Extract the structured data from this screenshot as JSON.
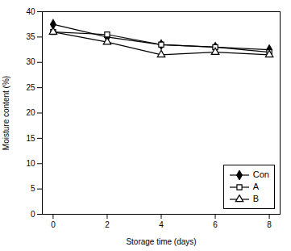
{
  "chart_data": {
    "type": "line",
    "xlabel": "Storage time (days)",
    "ylabel": "Moisture content (%)",
    "x": [
      0,
      2,
      4,
      6,
      8
    ],
    "series": [
      {
        "name": "Con",
        "color": "#000000",
        "marker": "diamond",
        "values": [
          37.5,
          35.0,
          33.5,
          33.0,
          32.5
        ]
      },
      {
        "name": "A",
        "color": "#000000",
        "marker": "square_open",
        "values": [
          36.0,
          35.5,
          33.5,
          33.0,
          32.0
        ]
      },
      {
        "name": "B",
        "color": "#000000",
        "marker": "triangle_open",
        "values": [
          36.0,
          34.0,
          31.5,
          32.0,
          31.5
        ]
      }
    ],
    "xlim": [
      -0.4,
      8.4
    ],
    "xticks": [
      0,
      2,
      4,
      6,
      8
    ],
    "ylim": [
      0,
      40
    ],
    "yticks": [
      0,
      5,
      10,
      15,
      20,
      25,
      30,
      35,
      40
    ],
    "grid": false,
    "legend": "lower right"
  }
}
